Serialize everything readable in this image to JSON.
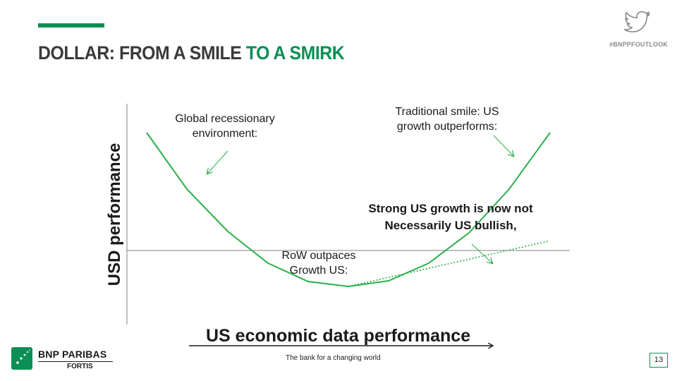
{
  "header": {
    "title_part1": "DOLLAR: FROM A SMILE ",
    "title_part2": "TO A SMIRK",
    "hashtag": "#BNPPFOUTLOOK",
    "twitter_icon": "twitter-bird-icon",
    "accent_color": "#0a8f55"
  },
  "diagram": {
    "y_axis_label": "USD performance",
    "x_axis_label": "US economic data performance",
    "curve_color": "#2ab04a",
    "annotations": {
      "left_line1": "Global recessionary",
      "left_line2": "environment:",
      "right_line1": "Traditional smile: US",
      "right_line2": "growth outperforms:",
      "center_line1": "RoW outpaces",
      "center_line2": "Growth US:",
      "smirk_line1": "Strong US growth is now not",
      "smirk_line2": "Necessarily US bullish,"
    }
  },
  "footer": {
    "brand_line1": "BNP PARIBAS",
    "brand_line2": "FORTIS",
    "tagline": "The bank for a changing world",
    "page_number": "13"
  }
}
